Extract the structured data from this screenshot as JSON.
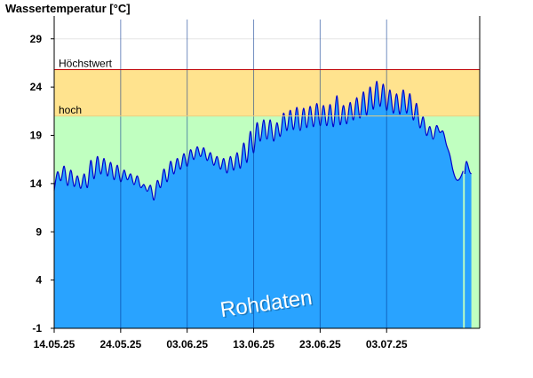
{
  "chart_data": {
    "type": "area",
    "title": "Wassertemperatur [°C]",
    "watermark": "Rohdaten",
    "ylim": [
      -1,
      31
    ],
    "yticks": [
      -1,
      4,
      9,
      14,
      19,
      24,
      29
    ],
    "x_range": [
      "2025-05-14",
      "2025-07-17"
    ],
    "x_ticks": [
      {
        "label": "14.05.25",
        "date": "2025-05-14"
      },
      {
        "label": "24.05.25",
        "date": "2025-05-24"
      },
      {
        "label": "03.06.25",
        "date": "2025-06-03"
      },
      {
        "label": "13.06.25",
        "date": "2025-06-13"
      },
      {
        "label": "23.06.25",
        "date": "2025-06-23"
      },
      {
        "label": "03.07.25",
        "date": "2025-07-03"
      }
    ],
    "thresholds": [
      {
        "label": "Höchstwert",
        "value": 25.8,
        "line_color": "#c00000"
      },
      {
        "label": "hoch",
        "value": 21.0,
        "line_color": "#e8d080"
      }
    ],
    "bands": [
      {
        "from": -1,
        "to": 21.0,
        "color": "#c0ffc0"
      },
      {
        "from": 21.0,
        "to": 25.8,
        "color": "#ffe38e"
      }
    ],
    "colors": {
      "fill": "#29a3ff",
      "line": "#0000cc",
      "axis": "#000000",
      "grid": "#e6e6e6"
    },
    "gap": {
      "from": "2025-07-14T12:00",
      "to": "2025-07-14T18:00"
    },
    "series": [
      {
        "points": [
          [
            "2025-05-14T00:00",
            13.3
          ],
          [
            "2025-05-14T12:00",
            15.2
          ],
          [
            "2025-05-15T00:00",
            14.3
          ],
          [
            "2025-05-15T12:00",
            15.8
          ],
          [
            "2025-05-16T00:00",
            13.8
          ],
          [
            "2025-05-16T12:00",
            15.4
          ],
          [
            "2025-05-17T00:00",
            13.7
          ],
          [
            "2025-05-17T12:00",
            14.8
          ],
          [
            "2025-05-18T00:00",
            13.5
          ],
          [
            "2025-05-18T12:00",
            15.0
          ],
          [
            "2025-05-19T00:00",
            13.6
          ],
          [
            "2025-05-19T12:00",
            16.4
          ],
          [
            "2025-05-20T00:00",
            14.5
          ],
          [
            "2025-05-20T12:00",
            16.8
          ],
          [
            "2025-05-21T00:00",
            15.0
          ],
          [
            "2025-05-21T12:00",
            16.6
          ],
          [
            "2025-05-22T00:00",
            14.8
          ],
          [
            "2025-05-22T12:00",
            16.2
          ],
          [
            "2025-05-23T00:00",
            14.4
          ],
          [
            "2025-05-23T12:00",
            15.9
          ],
          [
            "2025-05-24T00:00",
            14.2
          ],
          [
            "2025-05-24T12:00",
            15.4
          ],
          [
            "2025-05-25T00:00",
            14.4
          ],
          [
            "2025-05-25T12:00",
            15.0
          ],
          [
            "2025-05-26T00:00",
            13.9
          ],
          [
            "2025-05-26T12:00",
            14.8
          ],
          [
            "2025-05-27T00:00",
            13.6
          ],
          [
            "2025-05-27T12:00",
            13.9
          ],
          [
            "2025-05-28T00:00",
            13.2
          ],
          [
            "2025-05-28T12:00",
            13.8
          ],
          [
            "2025-05-29T00:00",
            12.3
          ],
          [
            "2025-05-29T12:00",
            14.3
          ],
          [
            "2025-05-30T00:00",
            13.6
          ],
          [
            "2025-05-30T12:00",
            15.5
          ],
          [
            "2025-05-31T00:00",
            14.2
          ],
          [
            "2025-05-31T12:00",
            16.3
          ],
          [
            "2025-06-01T00:00",
            15.0
          ],
          [
            "2025-06-01T12:00",
            16.6
          ],
          [
            "2025-06-02T00:00",
            15.5
          ],
          [
            "2025-06-02T12:00",
            17.1
          ],
          [
            "2025-06-03T00:00",
            15.8
          ],
          [
            "2025-06-03T12:00",
            17.5
          ],
          [
            "2025-06-04T00:00",
            16.5
          ],
          [
            "2025-06-04T12:00",
            17.8
          ],
          [
            "2025-06-05T00:00",
            16.8
          ],
          [
            "2025-06-05T12:00",
            17.7
          ],
          [
            "2025-06-06T00:00",
            16.4
          ],
          [
            "2025-06-06T12:00",
            17.2
          ],
          [
            "2025-06-07T00:00",
            15.9
          ],
          [
            "2025-06-07T12:00",
            16.8
          ],
          [
            "2025-06-08T00:00",
            15.5
          ],
          [
            "2025-06-08T12:00",
            16.6
          ],
          [
            "2025-06-09T00:00",
            15.1
          ],
          [
            "2025-06-09T12:00",
            16.8
          ],
          [
            "2025-06-10T00:00",
            15.4
          ],
          [
            "2025-06-10T12:00",
            17.2
          ],
          [
            "2025-06-11T00:00",
            15.6
          ],
          [
            "2025-06-11T12:00",
            18.2
          ],
          [
            "2025-06-12T00:00",
            16.2
          ],
          [
            "2025-06-12T12:00",
            19.4
          ],
          [
            "2025-06-13T00:00",
            17.2
          ],
          [
            "2025-06-13T12:00",
            20.3
          ],
          [
            "2025-06-14T00:00",
            18.4
          ],
          [
            "2025-06-14T12:00",
            20.6
          ],
          [
            "2025-06-15T00:00",
            18.6
          ],
          [
            "2025-06-15T12:00",
            20.6
          ],
          [
            "2025-06-16T00:00",
            18.4
          ],
          [
            "2025-06-16T12:00",
            20.3
          ],
          [
            "2025-06-17T00:00",
            18.9
          ],
          [
            "2025-06-17T12:00",
            21.3
          ],
          [
            "2025-06-18T00:00",
            19.5
          ],
          [
            "2025-06-18T12:00",
            21.6
          ],
          [
            "2025-06-19T00:00",
            19.6
          ],
          [
            "2025-06-19T12:00",
            21.9
          ],
          [
            "2025-06-20T00:00",
            19.5
          ],
          [
            "2025-06-20T12:00",
            21.8
          ],
          [
            "2025-06-21T00:00",
            19.8
          ],
          [
            "2025-06-21T12:00",
            22.0
          ],
          [
            "2025-06-22T00:00",
            19.9
          ],
          [
            "2025-06-22T12:00",
            22.3
          ],
          [
            "2025-06-23T00:00",
            20.0
          ],
          [
            "2025-06-23T12:00",
            22.1
          ],
          [
            "2025-06-24T00:00",
            20.0
          ],
          [
            "2025-06-24T12:00",
            22.2
          ],
          [
            "2025-06-25T00:00",
            19.9
          ],
          [
            "2025-06-25T12:00",
            23.1
          ],
          [
            "2025-06-26T00:00",
            20.1
          ],
          [
            "2025-06-26T12:00",
            22.1
          ],
          [
            "2025-06-27T00:00",
            20.2
          ],
          [
            "2025-06-27T12:00",
            22.4
          ],
          [
            "2025-06-28T00:00",
            20.6
          ],
          [
            "2025-06-28T12:00",
            22.9
          ],
          [
            "2025-06-29T00:00",
            20.8
          ],
          [
            "2025-06-29T12:00",
            23.5
          ],
          [
            "2025-06-30T00:00",
            21.1
          ],
          [
            "2025-06-30T12:00",
            24.0
          ],
          [
            "2025-07-01T00:00",
            21.7
          ],
          [
            "2025-07-01T12:00",
            24.6
          ],
          [
            "2025-07-02T00:00",
            22.0
          ],
          [
            "2025-07-02T12:00",
            24.3
          ],
          [
            "2025-07-03T00:00",
            21.6
          ],
          [
            "2025-07-03T12:00",
            23.7
          ],
          [
            "2025-07-04T00:00",
            21.3
          ],
          [
            "2025-07-04T12:00",
            23.3
          ],
          [
            "2025-07-05T00:00",
            21.2
          ],
          [
            "2025-07-05T12:00",
            23.7
          ],
          [
            "2025-07-06T00:00",
            21.3
          ],
          [
            "2025-07-06T12:00",
            23.3
          ],
          [
            "2025-07-07T00:00",
            20.6
          ],
          [
            "2025-07-07T12:00",
            22.3
          ],
          [
            "2025-07-08T00:00",
            19.8
          ],
          [
            "2025-07-08T12:00",
            20.9
          ],
          [
            "2025-07-09T00:00",
            19.0
          ],
          [
            "2025-07-09T12:00",
            19.9
          ],
          [
            "2025-07-10T00:00",
            18.6
          ],
          [
            "2025-07-10T12:00",
            20.0
          ],
          [
            "2025-07-11T00:00",
            19.3
          ],
          [
            "2025-07-11T12:00",
            19.4
          ],
          [
            "2025-07-12T00:00",
            18.0
          ],
          [
            "2025-07-12T12:00",
            17.0
          ],
          [
            "2025-07-13T00:00",
            15.3
          ],
          [
            "2025-07-13T12:00",
            14.4
          ],
          [
            "2025-07-14T00:00",
            14.5
          ],
          [
            "2025-07-14T12:00",
            15.3
          ],
          [
            "2025-07-14T18:00",
            15.0
          ],
          [
            "2025-07-15T00:00",
            16.3
          ],
          [
            "2025-07-15T12:00",
            15.2
          ],
          [
            "2025-07-15T18:00",
            15.0
          ]
        ]
      }
    ]
  }
}
